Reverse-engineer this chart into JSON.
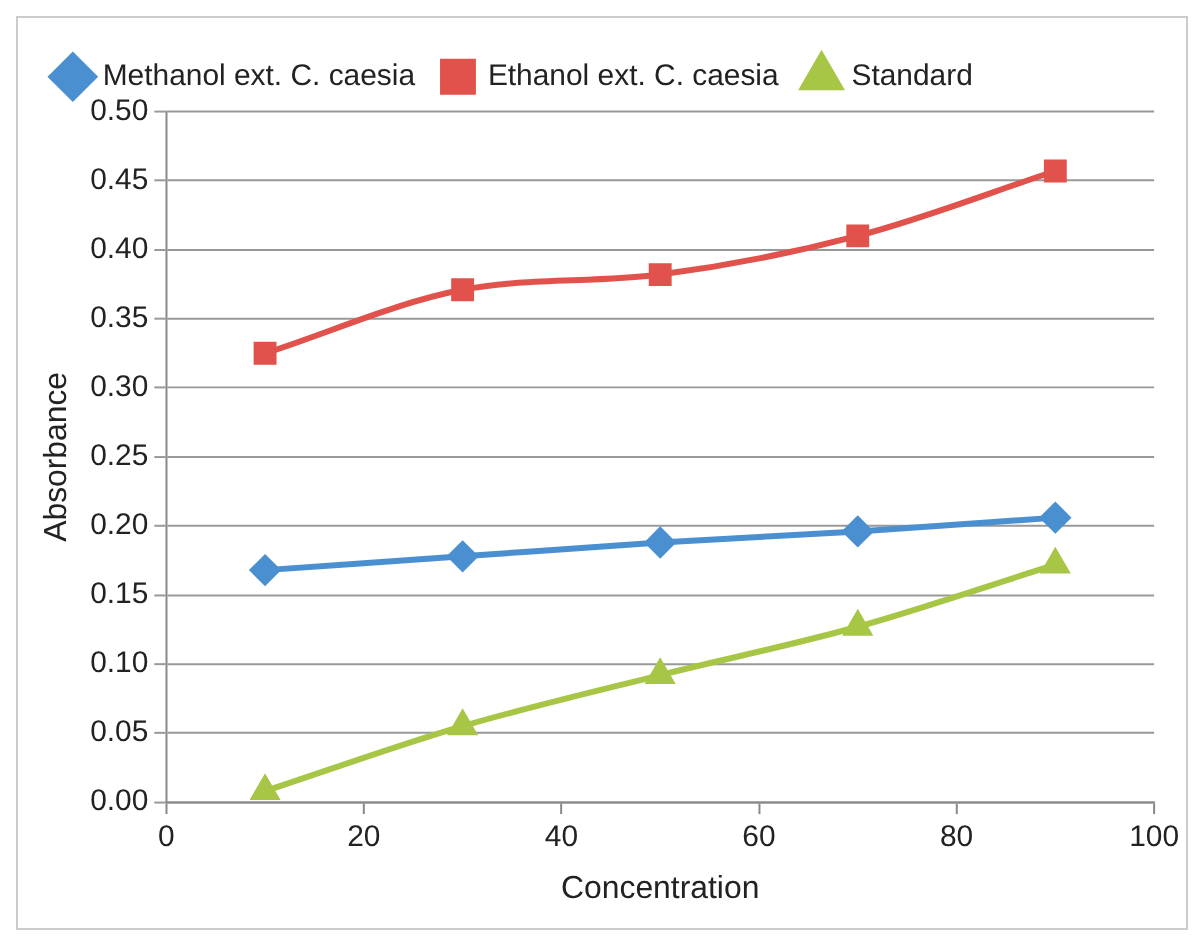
{
  "chart_data": {
    "type": "line",
    "xlabel": "Concentration",
    "ylabel": "Absorbance",
    "x": [
      10,
      30,
      50,
      70,
      90
    ],
    "series": [
      {
        "name": "Methanol ext. C. caesia",
        "color": "#4a90d0",
        "marker": "diamond",
        "values": [
          0.168,
          0.178,
          0.188,
          0.196,
          0.206
        ]
      },
      {
        "name": "Ethanol ext. C. caesia",
        "color": "#e0524b",
        "marker": "square",
        "values": [
          0.325,
          0.371,
          0.382,
          0.41,
          0.457
        ]
      },
      {
        "name": "Standard",
        "color": "#a8c646",
        "marker": "triangle",
        "values": [
          0.008,
          0.055,
          0.092,
          0.127,
          0.172
        ]
      }
    ],
    "xlim": [
      0,
      100
    ],
    "xticks": [
      0,
      20,
      40,
      60,
      80,
      100
    ],
    "ylim": [
      0,
      0.5
    ],
    "yticks": [
      {
        "value": 0,
        "label": "0.00"
      },
      {
        "value": 0.05,
        "label": "0.05"
      },
      {
        "value": 0.1,
        "label": "0.10"
      },
      {
        "value": 0.15,
        "label": "0.15"
      },
      {
        "value": 0.2,
        "label": "0.20"
      },
      {
        "value": 0.25,
        "label": "0.25"
      },
      {
        "value": 0.3,
        "label": "0.30"
      },
      {
        "value": 0.35,
        "label": "0.35"
      },
      {
        "value": 0.4,
        "label": "0.40"
      },
      {
        "value": 0.45,
        "label": "0.45"
      },
      {
        "value": 0.5,
        "label": "0.50"
      }
    ],
    "grid": "y",
    "legend": "top"
  }
}
